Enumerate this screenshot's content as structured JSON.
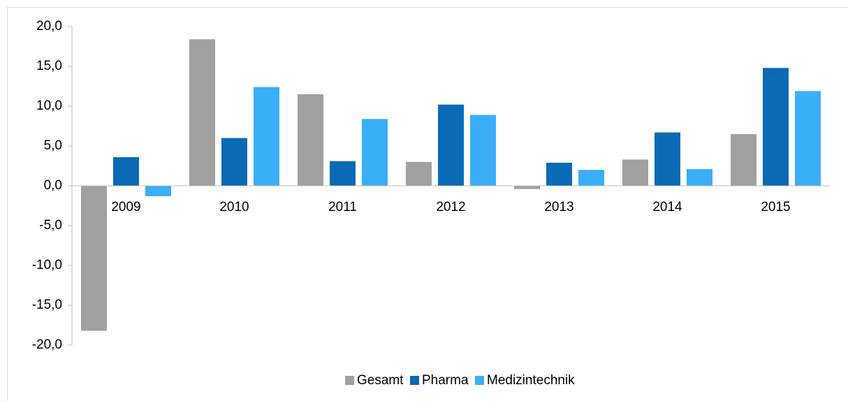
{
  "chart_data": {
    "type": "bar",
    "categories": [
      "2009",
      "2010",
      "2011",
      "2012",
      "2013",
      "2014",
      "2015"
    ],
    "series": [
      {
        "name": "Gesamt",
        "color": "#a0a0a0",
        "values": [
          -18.2,
          18.4,
          11.5,
          3.0,
          -0.4,
          3.3,
          6.5
        ]
      },
      {
        "name": "Pharma",
        "color": "#0a6ab5",
        "values": [
          3.6,
          6.0,
          3.1,
          10.2,
          2.9,
          6.7,
          14.8
        ]
      },
      {
        "name": "Medizintechnik",
        "color": "#3aaef8",
        "values": [
          -1.3,
          12.4,
          8.4,
          8.9,
          2.0,
          2.1,
          11.9
        ]
      }
    ],
    "ylim": [
      -20,
      20
    ],
    "yticks": [
      {
        "value": -20,
        "label": "-20,0"
      },
      {
        "value": -15,
        "label": "-15,0"
      },
      {
        "value": -10,
        "label": "-10,0"
      },
      {
        "value": -5,
        "label": "-5,0"
      },
      {
        "value": 0,
        "label": "0,0"
      },
      {
        "value": 5,
        "label": "5,0"
      },
      {
        "value": 10,
        "label": "10,0"
      },
      {
        "value": 15,
        "label": "15,0"
      },
      {
        "value": 20,
        "label": "20,0"
      }
    ],
    "legend": "bottom"
  }
}
